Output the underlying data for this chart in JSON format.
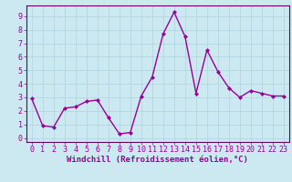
{
  "x": [
    0,
    1,
    2,
    3,
    4,
    5,
    6,
    7,
    8,
    9,
    10,
    11,
    12,
    13,
    14,
    15,
    16,
    17,
    18,
    19,
    20,
    21,
    22,
    23
  ],
  "y": [
    2.9,
    0.9,
    0.8,
    2.2,
    2.3,
    2.7,
    2.8,
    1.5,
    0.3,
    0.4,
    3.1,
    4.5,
    7.7,
    9.3,
    7.5,
    3.3,
    6.5,
    4.9,
    3.7,
    3.0,
    3.5,
    3.3,
    3.1,
    3.1
  ],
  "line_color": "#990099",
  "marker": "D",
  "marker_size": 2,
  "line_width": 1.0,
  "bg_color": "#cce8f0",
  "grid_color": "#aad4e0",
  "xlabel": "Windchill (Refroidissement éolien,°C)",
  "xlabel_fontsize": 6.5,
  "tick_fontsize": 6,
  "xlim": [
    -0.5,
    23.5
  ],
  "ylim": [
    -0.3,
    9.8
  ],
  "yticks": [
    0,
    1,
    2,
    3,
    4,
    5,
    6,
    7,
    8,
    9
  ],
  "xticks": [
    0,
    1,
    2,
    3,
    4,
    5,
    6,
    7,
    8,
    9,
    10,
    11,
    12,
    13,
    14,
    15,
    16,
    17,
    18,
    19,
    20,
    21,
    22,
    23
  ],
  "spine_color": "#660066"
}
